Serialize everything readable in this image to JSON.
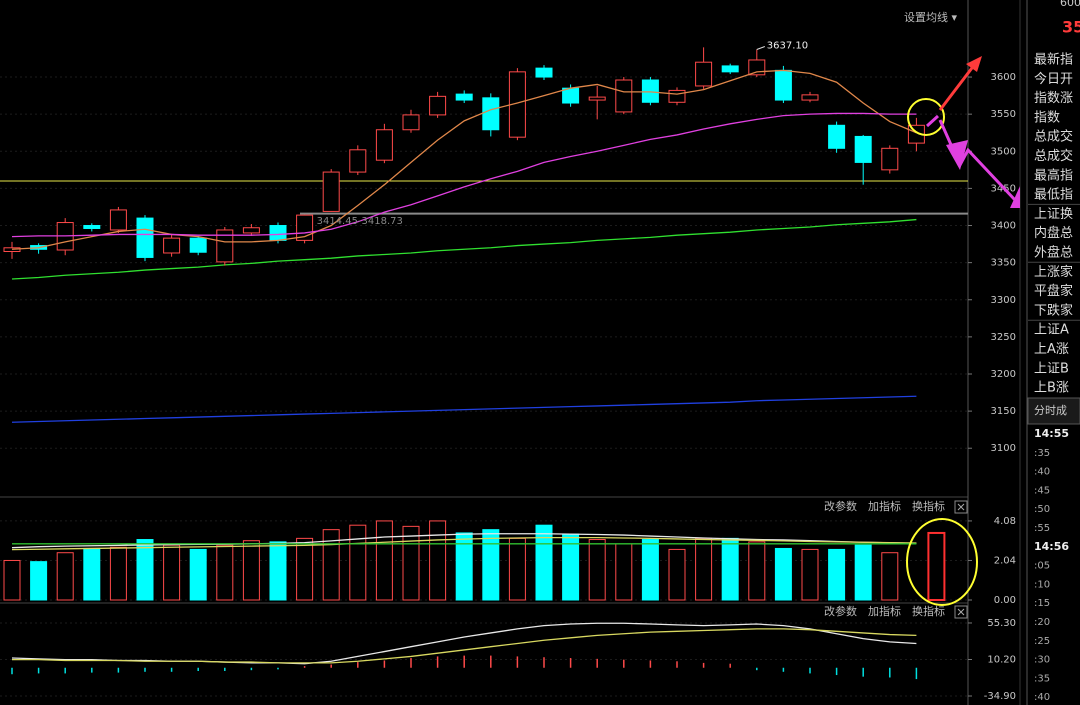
{
  "chart_data": [
    {
      "type": "candlestick",
      "open": [
        3365,
        3373,
        3367,
        3400,
        3394,
        3410,
        3363,
        3383,
        3351,
        3390,
        3400,
        3380,
        3419,
        3472,
        3488,
        3529,
        3549,
        3577,
        3572,
        3519,
        3612,
        3585,
        3569,
        3553,
        3596,
        3566,
        3588,
        3615,
        3603,
        3609,
        3569,
        3535,
        3520,
        3475,
        3511
      ],
      "high": [
        3378,
        3376,
        3410,
        3403,
        3425,
        3414,
        3388,
        3386,
        3398,
        3402,
        3404,
        3414.45,
        3476,
        3508,
        3537,
        3556,
        3580,
        3582,
        3578,
        3612,
        3616,
        3590,
        3588,
        3600,
        3600,
        3586,
        3640,
        3618,
        3637.1,
        3615,
        3580,
        3540,
        3522,
        3508,
        3545
      ],
      "low": [
        3355,
        3362,
        3360,
        3392,
        3390,
        3352,
        3358,
        3360,
        3346,
        3386,
        3376,
        3376,
        3418.73,
        3468,
        3484,
        3525,
        3545,
        3565,
        3520,
        3515,
        3596,
        3560,
        3543,
        3550,
        3562,
        3562,
        3584,
        3604,
        3600,
        3565,
        3566,
        3498,
        3455,
        3470,
        3500
      ],
      "close": [
        3370,
        3368,
        3404,
        3396,
        3421,
        3357,
        3383,
        3364,
        3394,
        3397,
        3380,
        3414,
        3472,
        3502,
        3529,
        3549,
        3574,
        3569,
        3529,
        3607,
        3600,
        3565,
        3573,
        3596,
        3566,
        3582,
        3620,
        3607,
        3623,
        3569,
        3576,
        3504,
        3485,
        3504,
        3535
      ],
      "up_color": "#ff4a4a",
      "down_color": "#00ffff",
      "series": [
        {
          "color": "#e0874a",
          "values": [
            3368,
            3370,
            3378,
            3385,
            3392,
            3395,
            3388,
            3385,
            3378,
            3378,
            3380,
            3385,
            3400,
            3427,
            3455,
            3485,
            3515,
            3541,
            3556,
            3565,
            3575,
            3585,
            3590,
            3580,
            3580,
            3577,
            3583,
            3595,
            3607,
            3609,
            3605,
            3593,
            3565,
            3540,
            3525
          ]
        },
        {
          "color": "#e040e0",
          "values": [
            3385,
            3386,
            3386,
            3387,
            3388,
            3388,
            3388,
            3387,
            3387,
            3387,
            3388,
            3390,
            3395,
            3405,
            3418,
            3428,
            3440,
            3452,
            3463,
            3473,
            3485,
            3493,
            3500,
            3508,
            3516,
            3522,
            3530,
            3537,
            3543,
            3548,
            3550,
            3551,
            3551,
            3550,
            3550
          ]
        },
        {
          "color": "#30e030",
          "values": [
            3328,
            3330,
            3333,
            3335,
            3337,
            3340,
            3342,
            3344,
            3347,
            3349,
            3352,
            3354,
            3356,
            3359,
            3361,
            3363,
            3366,
            3368,
            3370,
            3373,
            3375,
            3377,
            3380,
            3382,
            3384,
            3387,
            3389,
            3391,
            3394,
            3396,
            3398,
            3401,
            3403,
            3405,
            3408
          ]
        },
        {
          "color": "#2040e0",
          "values": [
            3135,
            3136,
            3137,
            3138,
            3139,
            3140,
            3141,
            3142,
            3143,
            3144,
            3145,
            3146,
            3147,
            3148,
            3149,
            3150,
            3151,
            3152,
            3153,
            3154,
            3155,
            3156,
            3157,
            3158,
            3159,
            3160,
            3161,
            3162,
            3164,
            3165,
            3166,
            3167,
            3168,
            3169,
            3170
          ]
        }
      ],
      "hlines": [
        {
          "value": 3460,
          "color": "#e8e84a"
        },
        {
          "value": 3416,
          "color": "#8a8a8a"
        }
      ],
      "annotations": [
        {
          "text": "3637.10",
          "index": 28,
          "value": 3637.1
        },
        {
          "text": "3414.45-3418.73",
          "index": 11,
          "value": 3414.45
        }
      ],
      "button": "设置均线 ▾",
      "ylim": [
        3037,
        3693
      ],
      "yticks": [
        3100,
        3150,
        3200,
        3250,
        3300,
        3350,
        3400,
        3450,
        3500,
        3550,
        3600
      ]
    },
    {
      "type": "bar",
      "values": [
        2.04,
        1.98,
        2.44,
        2.66,
        2.72,
        3.12,
        2.83,
        2.61,
        2.83,
        3.06,
        3.0,
        3.18,
        3.63,
        3.86,
        4.08,
        3.8,
        4.08,
        3.46,
        3.63,
        3.18,
        3.86,
        3.4,
        3.12,
        2.89,
        3.12,
        2.61,
        3.18,
        3.18,
        3.0,
        2.66,
        2.61,
        2.61,
        2.83,
        2.44,
        3.46
      ],
      "series": [
        {
          "color": "#e8e8e8",
          "values": [
            2.7,
            2.75,
            2.78,
            2.8,
            2.82,
            2.84,
            2.86,
            2.87,
            2.88,
            2.9,
            2.92,
            2.96,
            3.05,
            3.15,
            3.25,
            3.3,
            3.35,
            3.4,
            3.42,
            3.42,
            3.42,
            3.4,
            3.38,
            3.35,
            3.3,
            3.25,
            3.2,
            3.16,
            3.12,
            3.1,
            3.06,
            3.02,
            2.98,
            2.95,
            2.92
          ]
        },
        {
          "color": "#d8d860",
          "values": [
            2.6,
            2.62,
            2.64,
            2.66,
            2.68,
            2.7,
            2.72,
            2.74,
            2.76,
            2.78,
            2.8,
            2.82,
            2.86,
            2.92,
            2.98,
            3.04,
            3.1,
            3.14,
            3.18,
            3.2,
            3.22,
            3.22,
            3.22,
            3.2,
            3.18,
            3.15,
            3.12,
            3.1,
            3.08,
            3.05,
            3.02,
            3.0,
            2.98,
            2.96,
            2.94
          ]
        },
        {
          "color": "#30c030",
          "values": [
            2.9,
            2.9,
            2.9,
            2.9,
            2.9,
            2.9,
            2.9,
            2.9,
            2.9,
            2.9,
            2.9,
            2.9,
            2.9,
            2.9,
            2.9,
            2.9,
            2.9,
            2.9,
            2.9,
            2.9,
            2.9,
            2.9,
            2.9,
            2.9,
            2.9,
            2.9,
            2.9,
            2.9,
            2.9,
            2.9,
            2.9,
            2.9,
            2.9,
            2.9,
            2.9
          ]
        }
      ],
      "buttons": [
        "改参数",
        "加指标",
        "换指标"
      ],
      "ylim": [
        0,
        5.16
      ],
      "yticks": [
        {
          "value": 0,
          "label": "0.00"
        },
        2.04,
        4.08
      ]
    },
    {
      "type": "line",
      "series": [
        {
          "color": "#e8e8e8",
          "values": [
            12,
            11,
            10,
            10,
            9,
            9,
            8,
            8,
            7,
            6,
            6,
            5,
            8,
            14,
            20,
            26,
            32,
            38,
            43,
            48,
            52,
            54,
            55,
            55,
            54,
            53,
            52,
            53,
            54,
            52,
            48,
            42,
            36,
            32,
            30
          ]
        },
        {
          "color": "#d8d860",
          "values": [
            10,
            10,
            9,
            9,
            9,
            8,
            8,
            8,
            7,
            7,
            6,
            6,
            6,
            8,
            11,
            14,
            18,
            22,
            26,
            30,
            34,
            37,
            40,
            42,
            44,
            45,
            46,
            47,
            48,
            48,
            47,
            45,
            43,
            41,
            40
          ]
        }
      ],
      "histogram": [
        -8,
        -7,
        -7,
        -6,
        -6,
        -5,
        -5,
        -4,
        -4,
        -3,
        -2,
        2,
        4,
        7,
        9,
        12,
        14,
        15,
        15,
        14,
        13,
        12,
        11,
        10,
        9,
        8,
        6,
        5,
        -3,
        -5,
        -7,
        -9,
        -11,
        -12,
        -14
      ],
      "buttons": [
        "改参数",
        "加指标",
        "换指标"
      ],
      "ylim": [
        -46,
        77.5
      ],
      "yticks": [
        {
          "value": -34.9,
          "label": "-34.90"
        },
        {
          "value": 10.2,
          "label": "10.20"
        },
        {
          "value": 55.3,
          "label": "55.30"
        }
      ]
    }
  ],
  "side_panel": {
    "top": "600",
    "header": "35",
    "labels": [
      "最新指",
      "今日开",
      "指数涨",
      "指数",
      "总成交",
      "总成交",
      "最高指",
      "最低指",
      "上证换",
      "内盘总",
      "外盘总",
      "上涨家",
      "平盘家",
      "下跌家",
      "上证A",
      "上A涨",
      "上证B",
      "上B涨"
    ],
    "section": "分时成",
    "times": [
      "14:55",
      ":35",
      ":40",
      ":45",
      ":50",
      ":55",
      "14:56",
      ":05",
      ":10",
      ":15",
      ":20",
      ":25",
      ":30",
      ":35",
      ":40"
    ]
  }
}
